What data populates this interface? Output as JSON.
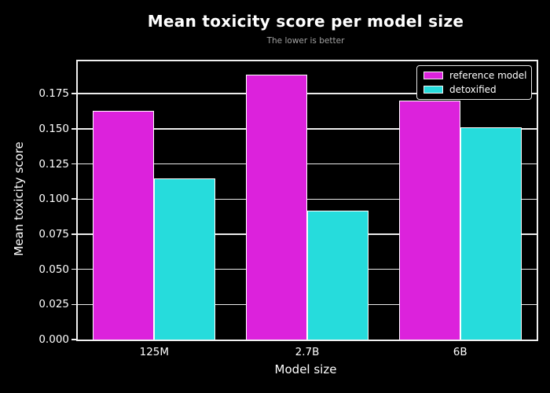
{
  "title": "Mean toxicity score per model size",
  "subtitle": "The lower is better",
  "chart_data": {
    "type": "bar",
    "categories": [
      "125M",
      "2.7B",
      "6B"
    ],
    "series": [
      {
        "name": "reference model",
        "color": "#DC22DC",
        "values": [
          0.1627,
          0.1884,
          0.1699
        ]
      },
      {
        "name": "detoxified",
        "color": "#26DCDC",
        "values": [
          0.1148,
          0.0916,
          0.151
        ]
      }
    ],
    "xlabel": "Model size",
    "ylabel": "Mean toxicity score",
    "ylim": [
      0,
      0.198
    ],
    "yticks": [
      0.0,
      0.025,
      0.05,
      0.075,
      0.1,
      0.125,
      0.15,
      0.175
    ],
    "ytick_labels": [
      "0.000",
      "0.025",
      "0.050",
      "0.075",
      "0.100",
      "0.125",
      "0.150",
      "0.175"
    ],
    "grid": true,
    "legend_position": "upper right",
    "colors": {
      "background": "#000000",
      "text": "#ffffff",
      "subtitle": "#a3a3a3",
      "axis": "#f0f0f0",
      "grid": "#ececec",
      "bar_edge": "#ffffff"
    }
  }
}
